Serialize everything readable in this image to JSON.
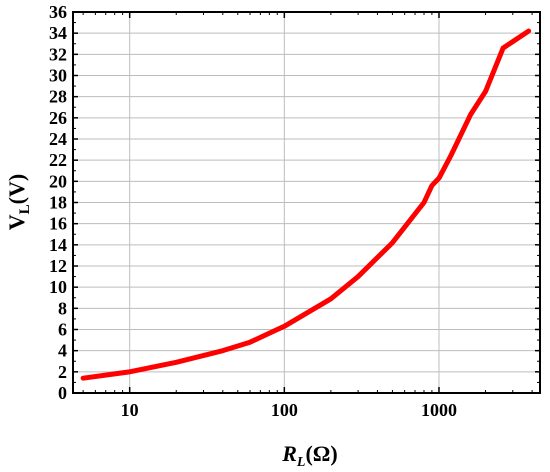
{
  "chart_data": {
    "type": "line",
    "x_scale": "log",
    "y_scale": "linear",
    "xlabel": {
      "main": "R",
      "sub": "L",
      "suffix": "(Ω)"
    },
    "ylabel": {
      "main": "V",
      "sub": "L",
      "suffix": "(V)"
    },
    "xlim": [
      4.3,
      4500
    ],
    "ylim": [
      0,
      36
    ],
    "x_ticks": [
      {
        "value": 10,
        "label": "10"
      },
      {
        "value": 100,
        "label": "100"
      },
      {
        "value": 1000,
        "label": "1000"
      }
    ],
    "y_ticks": [
      {
        "value": 0,
        "label": "0"
      },
      {
        "value": 2,
        "label": "2"
      },
      {
        "value": 4,
        "label": "4"
      },
      {
        "value": 6,
        "label": "6"
      },
      {
        "value": 8,
        "label": "8"
      },
      {
        "value": 10,
        "label": "10"
      },
      {
        "value": 12,
        "label": "12"
      },
      {
        "value": 14,
        "label": "14"
      },
      {
        "value": 16,
        "label": "16"
      },
      {
        "value": 18,
        "label": "18"
      },
      {
        "value": 20,
        "label": "20"
      },
      {
        "value": 22,
        "label": "22"
      },
      {
        "value": 24,
        "label": "24"
      },
      {
        "value": 26,
        "label": "26"
      },
      {
        "value": 28,
        "label": "28"
      },
      {
        "value": 30,
        "label": "30"
      },
      {
        "value": 32,
        "label": "32"
      },
      {
        "value": 34,
        "label": "34"
      },
      {
        "value": 36,
        "label": "36"
      }
    ],
    "grid": true,
    "series": [
      {
        "color": "#ff0000",
        "x": [
          5,
          10,
          20,
          40,
          60,
          90,
          100,
          200,
          300,
          500,
          800,
          900,
          1000,
          1200,
          1600,
          2000,
          2600,
          3000,
          3800
        ],
        "y": [
          1.4,
          2.0,
          2.9,
          4.0,
          4.8,
          6.0,
          6.3,
          8.9,
          11.0,
          14.2,
          18.0,
          19.6,
          20.3,
          22.5,
          26.3,
          28.5,
          32.6,
          33.2,
          34.2
        ]
      }
    ]
  }
}
